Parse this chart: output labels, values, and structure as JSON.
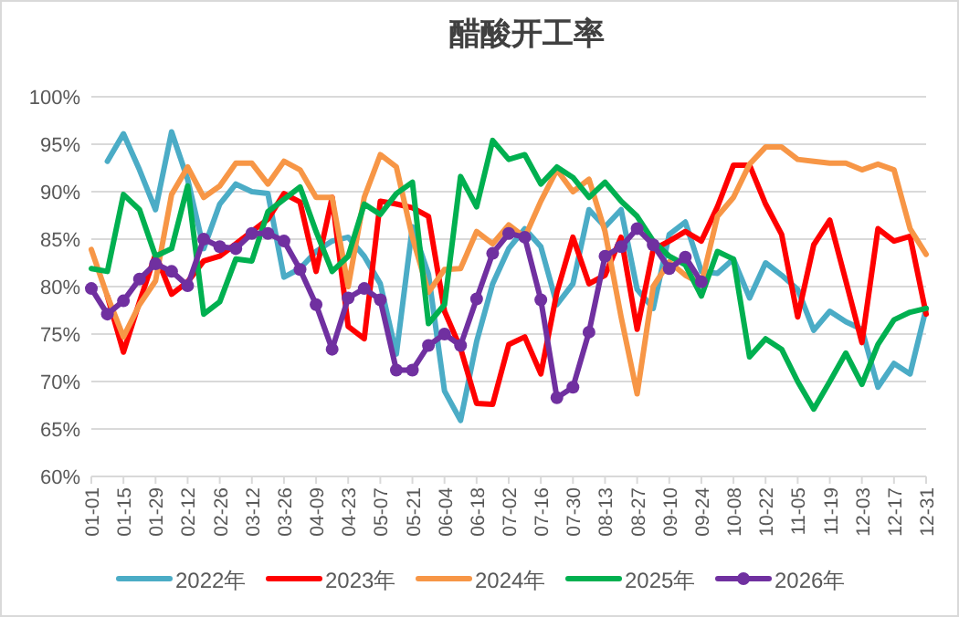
{
  "chart_data": {
    "type": "line",
    "title": "醋酸开工率",
    "categories": [
      "01-01",
      null,
      "01-15",
      null,
      "01-29",
      null,
      "02-12",
      null,
      "02-26",
      null,
      "03-12",
      null,
      "03-26",
      null,
      "04-09",
      null,
      "04-23",
      null,
      "05-07",
      null,
      "05-21",
      null,
      "06-04",
      null,
      "06-18",
      null,
      "07-02",
      null,
      "07-16",
      null,
      "07-30",
      null,
      "08-13",
      null,
      "08-27",
      null,
      "09-10",
      null,
      "09-24",
      null,
      "10-08",
      null,
      "10-22",
      null,
      "11-05",
      null,
      "11-19",
      null,
      "12-03",
      null,
      "12-17",
      null,
      "12-31"
    ],
    "series": [
      {
        "name": "2022年",
        "color": "#4bacc6",
        "marker": "none",
        "values": [
          null,
          93.2,
          96.1,
          92.3,
          88.1,
          96.3,
          91.3,
          84.0,
          88.7,
          90.8,
          90.0,
          89.8,
          81.0,
          81.9,
          83.7,
          84.8,
          85.2,
          83.2,
          80.3,
          72.9,
          86.3,
          81.3,
          69.0,
          65.9,
          74.2,
          80.3,
          84.0,
          86.1,
          84.2,
          78.1,
          80.3,
          88.1,
          86.3,
          88.1,
          79.7,
          77.7,
          85.5,
          86.8,
          81.6,
          81.4,
          82.9,
          78.8,
          82.5,
          81.2,
          79.7,
          75.4,
          77.4,
          76.3,
          75.5,
          69.4,
          71.9,
          70.8,
          77.7
        ]
      },
      {
        "name": "2023年",
        "color": "#ff0000",
        "marker": "none",
        "values": [
          null,
          79.0,
          73.1,
          78.4,
          83.4,
          79.2,
          80.5,
          82.7,
          83.2,
          84.5,
          85.8,
          87.1,
          89.8,
          88.9,
          81.6,
          89.4,
          75.8,
          74.5,
          89.0,
          88.7,
          88.3,
          87.4,
          77.4,
          73.5,
          67.7,
          67.6,
          73.9,
          74.7,
          70.8,
          79.4,
          85.2,
          80.3,
          81.2,
          85.2,
          75.5,
          83.9,
          84.8,
          85.8,
          84.8,
          88.4,
          92.8,
          92.8,
          88.7,
          85.5,
          76.8,
          84.4,
          87.0,
          80.6,
          74.1,
          86.1,
          84.8,
          85.3,
          77.1
        ]
      },
      {
        "name": "2024年",
        "color": "#f79646",
        "marker": "none",
        "values": [
          83.9,
          79.0,
          74.7,
          78.1,
          80.6,
          89.7,
          92.6,
          89.4,
          90.6,
          93.0,
          93.0,
          90.8,
          93.2,
          92.3,
          89.4,
          89.4,
          80.0,
          89.4,
          93.9,
          92.6,
          85.2,
          79.4,
          81.8,
          81.9,
          85.8,
          84.5,
          86.5,
          85.2,
          89.0,
          92.3,
          90.0,
          91.3,
          85.8,
          76.8,
          68.7,
          80.0,
          82.6,
          81.2,
          80.3,
          87.4,
          89.4,
          92.9,
          94.7,
          94.7,
          93.4,
          93.2,
          93.0,
          93.0,
          92.3,
          92.9,
          92.3,
          86.1,
          83.4
        ]
      },
      {
        "name": "2025年",
        "color": "#00b050",
        "marker": "none",
        "values": [
          81.9,
          81.6,
          89.7,
          88.1,
          83.2,
          84.0,
          90.6,
          77.1,
          78.4,
          82.9,
          82.7,
          87.9,
          89.2,
          90.5,
          85.8,
          81.6,
          83.2,
          88.7,
          87.6,
          89.8,
          91.0,
          76.1,
          78.1,
          91.6,
          88.4,
          95.4,
          93.4,
          93.9,
          90.8,
          92.6,
          91.5,
          89.4,
          91.0,
          89.0,
          87.4,
          84.8,
          83.2,
          82.3,
          79.0,
          83.7,
          82.9,
          72.6,
          74.5,
          73.4,
          70.0,
          67.1,
          70.0,
          73.0,
          69.7,
          73.9,
          76.5,
          77.3,
          77.7
        ]
      },
      {
        "name": "2026年",
        "color": "#7030a0",
        "marker": "circle",
        "values": [
          79.8,
          77.1,
          78.5,
          80.8,
          82.4,
          81.6,
          80.1,
          85.0,
          84.2,
          84.0,
          85.6,
          85.6,
          84.8,
          81.8,
          78.1,
          73.4,
          78.8,
          79.8,
          78.6,
          71.2,
          71.2,
          73.8,
          75.0,
          73.8,
          78.7,
          83.5,
          85.6,
          85.2,
          78.6,
          68.3,
          69.4,
          75.2,
          83.2,
          84.2,
          86.1,
          84.4,
          81.9,
          83.1,
          80.5,
          null,
          null,
          null,
          null,
          null,
          null,
          null,
          null,
          null,
          null,
          null,
          null,
          null,
          null
        ]
      }
    ],
    "ylim": [
      60,
      100
    ],
    "yticks": [
      {
        "value": 60,
        "label": "60%"
      },
      {
        "value": 65,
        "label": "65%"
      },
      {
        "value": 70,
        "label": "70%"
      },
      {
        "value": 75,
        "label": "75%"
      },
      {
        "value": 80,
        "label": "80%"
      },
      {
        "value": 85,
        "label": "85%"
      },
      {
        "value": 90,
        "label": "90%"
      },
      {
        "value": 95,
        "label": "95%"
      },
      {
        "value": 100,
        "label": "100%"
      }
    ],
    "grid": "y",
    "legend": "bottom"
  }
}
